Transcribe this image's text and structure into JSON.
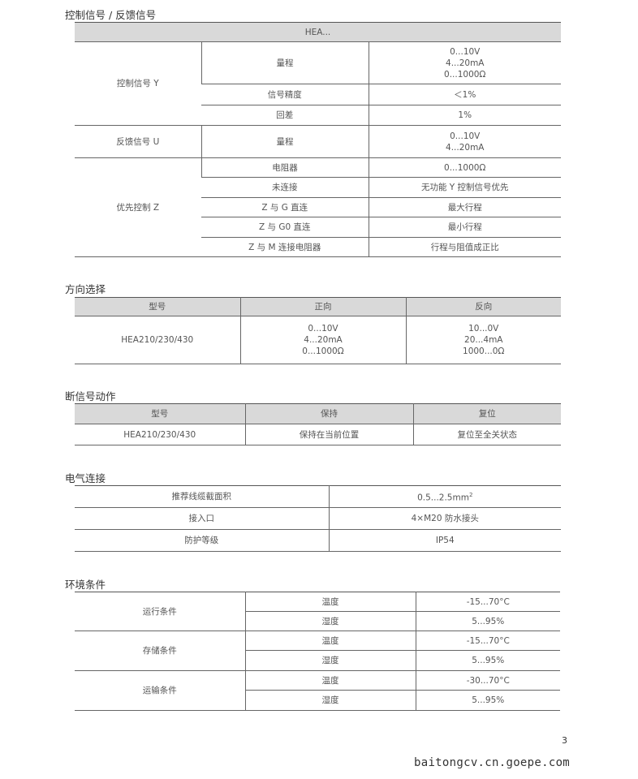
{
  "control": {
    "title": "控制信号 / 反馈信号",
    "header": "HEA...",
    "groups": {
      "y": {
        "label": "控制信号 Y",
        "rows": [
          {
            "param": "量程",
            "value": [
              "0...10V",
              "4...20mA",
              "0...1000Ω"
            ]
          },
          {
            "param": "信号精度",
            "value": "＜1%"
          },
          {
            "param": "回差",
            "value": "1%"
          }
        ]
      },
      "u": {
        "label": "反馈信号 U",
        "rows": [
          {
            "param": "量程",
            "value": [
              "0...10V",
              "4...20mA"
            ]
          }
        ]
      },
      "z": {
        "label": "优先控制 Z",
        "rows": [
          {
            "param": "电阻器",
            "value": "0...1000Ω"
          },
          {
            "param": "未连接",
            "value": "无功能 Y 控制信号优先"
          },
          {
            "param": "Z 与 G 直连",
            "value": "最大行程"
          },
          {
            "param": "Z 与 G0 直连",
            "value": "最小行程"
          },
          {
            "param": "Z 与 M 连接电阻器",
            "value": "行程与阻值成正比"
          }
        ]
      }
    }
  },
  "direction": {
    "title": "方向选择",
    "headers": [
      "型号",
      "正向",
      "反向"
    ],
    "model": "HEA210/230/430",
    "forward": [
      "0...10V",
      "4...20mA",
      "0...1000Ω"
    ],
    "reverse": [
      "10...0V",
      "20...4mA",
      "1000...0Ω"
    ]
  },
  "signal_loss": {
    "title": "断信号动作",
    "headers": [
      "型号",
      "保持",
      "复位"
    ],
    "row": [
      "HEA210/230/430",
      "保持在当前位置",
      "复位至全关状态"
    ]
  },
  "electrical": {
    "title": "电气连接",
    "rows": [
      {
        "label": "推荐线缆截面积",
        "value": "0.5...2.5mm",
        "sup": "2"
      },
      {
        "label": "接入口",
        "value": "4×M20 防水接头"
      },
      {
        "label": "防护等级",
        "value": "IP54"
      }
    ]
  },
  "environment": {
    "title": "环境条件",
    "groups": [
      {
        "label": "运行条件",
        "rows": [
          {
            "param": "温度",
            "value": "-15...70°C"
          },
          {
            "param": "湿度",
            "value": "5...95%"
          }
        ]
      },
      {
        "label": "存储条件",
        "rows": [
          {
            "param": "温度",
            "value": "-15...70°C"
          },
          {
            "param": "湿度",
            "value": "5...95%"
          }
        ]
      },
      {
        "label": "运输条件",
        "rows": [
          {
            "param": "温度",
            "value": "-30...70°C"
          },
          {
            "param": "湿度",
            "value": "5...95%"
          }
        ]
      }
    ]
  },
  "page_number": "3",
  "watermark": "baitongcv.cn.goepe.com"
}
